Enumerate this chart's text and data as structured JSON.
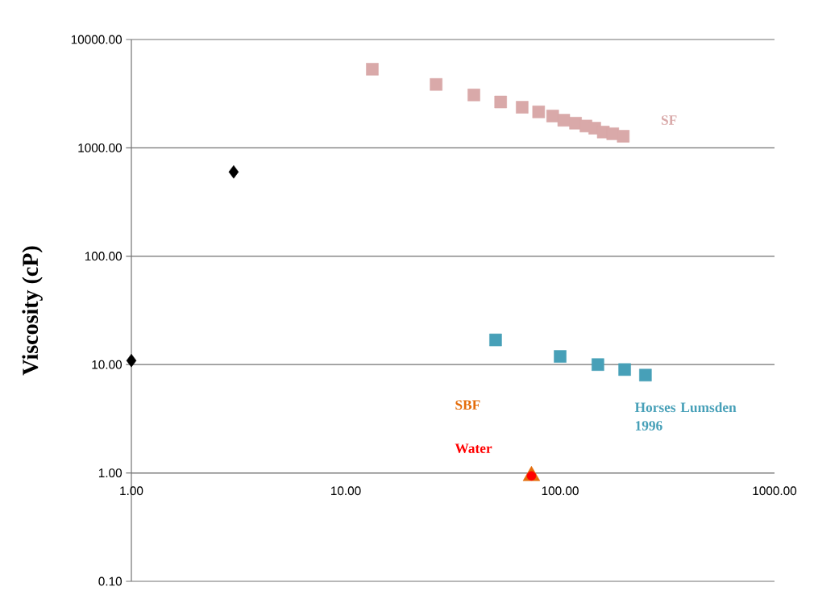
{
  "chart_data": {
    "type": "scatter",
    "ylabel": "Viscosity (cP)",
    "log": "xy",
    "grid": "y",
    "xlim": [
      1,
      1000
    ],
    "ylim": [
      0.1,
      10000
    ],
    "xticks": [
      {
        "value": 1,
        "label": "1.00"
      },
      {
        "value": 10,
        "label": "10.00"
      },
      {
        "value": 100,
        "label": "100.00"
      },
      {
        "value": 1000,
        "label": "1000.00"
      }
    ],
    "yticks": [
      {
        "value": 0.1,
        "label": "0.10"
      },
      {
        "value": 1,
        "label": "1.00"
      },
      {
        "value": 10,
        "label": "10.00"
      },
      {
        "value": 100,
        "label": "100.00"
      },
      {
        "value": 1000,
        "label": "1000.00"
      },
      {
        "value": 10000,
        "label": "10000.00"
      }
    ],
    "series": [
      {
        "color": "#000000",
        "marker": "diamond",
        "x": [
          1,
          3
        ],
        "values": [
          10.9,
          600
        ]
      },
      {
        "name": "SF",
        "color": "#d9a9a9",
        "marker": "square",
        "x": [
          13.3,
          26.4,
          39.6,
          52.8,
          66.5,
          79.4,
          92.3,
          104,
          118,
          132,
          145,
          159,
          176,
          197
        ],
        "values": [
          5320,
          3850,
          3080,
          2650,
          2370,
          2150,
          1970,
          1800,
          1690,
          1590,
          1520,
          1400,
          1350,
          1280
        ]
      },
      {
        "name": "Horses Lumsden 1996",
        "color": "#47a0b8",
        "marker": "square",
        "x": [
          50,
          100,
          150,
          200,
          250
        ],
        "values": [
          16.9,
          11.9,
          10.0,
          9.0,
          8.0
        ]
      },
      {
        "name": "SBF",
        "color": "#e46c0a",
        "marker": "triangle",
        "x": [
          73.5
        ],
        "values": [
          0.94
        ]
      },
      {
        "name": "Water",
        "color": "#ff0000",
        "marker": "circle",
        "x": [
          73.5
        ],
        "values": [
          0.94
        ]
      }
    ]
  }
}
